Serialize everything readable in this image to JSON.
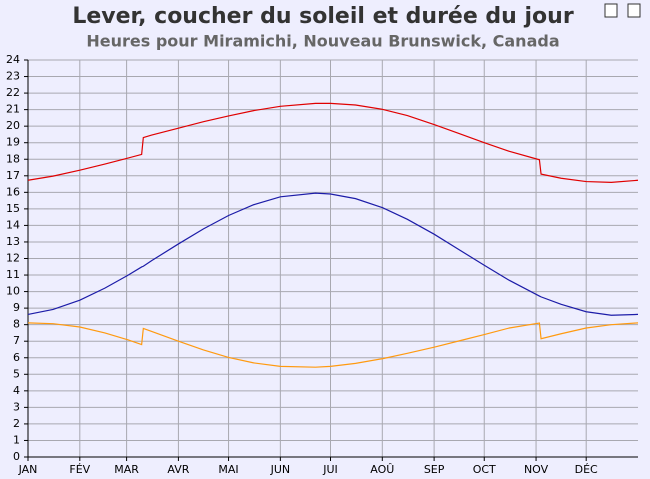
{
  "chart_data": {
    "type": "line",
    "title": "Lever, coucher du soleil et durée du jour",
    "subtitle": "Heures pour Miramichi, Nouveau Brunswick, Canada",
    "x": [
      0,
      15,
      31,
      46,
      59,
      68,
      69,
      74,
      90,
      105,
      120,
      135,
      151,
      172,
      181,
      196,
      212,
      227,
      243,
      258,
      273,
      288,
      306,
      307,
      319,
      334,
      349,
      365
    ],
    "series": [
      {
        "color": "#e00000",
        "values": [
          16.73,
          16.98,
          17.34,
          17.71,
          18.05,
          18.29,
          19.31,
          19.46,
          19.88,
          20.27,
          20.62,
          20.94,
          21.2,
          21.38,
          21.38,
          21.28,
          21.02,
          20.64,
          20.1,
          19.55,
          19.0,
          18.48,
          17.97,
          17.1,
          16.85,
          16.65,
          16.6,
          16.73
        ]
      },
      {
        "color": "#1c1ca8",
        "values": [
          8.62,
          8.92,
          9.48,
          10.21,
          10.94,
          11.49,
          11.53,
          11.87,
          12.88,
          13.79,
          14.6,
          15.25,
          15.73,
          15.95,
          15.9,
          15.62,
          15.08,
          14.37,
          13.47,
          12.53,
          11.59,
          10.68,
          9.73,
          9.68,
          9.23,
          8.78,
          8.57,
          8.62
        ]
      },
      {
        "color": "#ff9a10",
        "values": [
          8.11,
          8.06,
          7.86,
          7.5,
          7.11,
          6.8,
          7.77,
          7.59,
          7.0,
          6.47,
          6.02,
          5.69,
          5.48,
          5.43,
          5.48,
          5.66,
          5.94,
          6.27,
          6.64,
          7.02,
          7.4,
          7.8,
          8.1,
          7.15,
          7.45,
          7.8,
          8.0,
          8.11
        ]
      }
    ],
    "xlim": [
      0,
      365
    ],
    "xticks": [
      {
        "value": 0,
        "label": "JAN"
      },
      {
        "value": 31,
        "label": "FÉV"
      },
      {
        "value": 59,
        "label": "MAR"
      },
      {
        "value": 90,
        "label": "AVR"
      },
      {
        "value": 120,
        "label": "MAI"
      },
      {
        "value": 151,
        "label": "JUN"
      },
      {
        "value": 181,
        "label": "JUI"
      },
      {
        "value": 212,
        "label": "AOÛ"
      },
      {
        "value": 243,
        "label": "SEP"
      },
      {
        "value": 273,
        "label": "OCT"
      },
      {
        "value": 304,
        "label": "NOV"
      },
      {
        "value": 334,
        "label": "DÉC"
      }
    ],
    "ylim": [
      0,
      24
    ],
    "yticks": [
      0,
      1,
      2,
      3,
      4,
      5,
      6,
      7,
      8,
      9,
      10,
      11,
      12,
      13,
      14,
      15,
      16,
      17,
      18,
      19,
      20,
      21,
      22,
      23,
      24
    ],
    "grid": true
  }
}
